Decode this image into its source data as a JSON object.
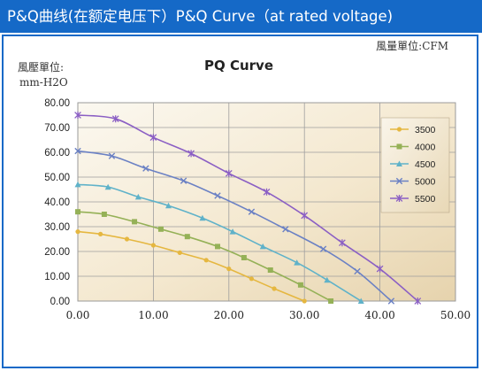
{
  "banner": {
    "title": "P&Q曲线(在额定电压下）P&Q Curve（at rated voltage)"
  },
  "chart_data": {
    "type": "line",
    "title": "PQ Curve",
    "ylabel_line1": "風壓單位:",
    "ylabel_line2": "mm-H2O",
    "xunit_label": "風量單位:CFM",
    "xlim": [
      0,
      50
    ],
    "ylim": [
      0,
      80
    ],
    "xticks": [
      "0.00",
      "10.00",
      "20.00",
      "30.00",
      "40.00",
      "50.00"
    ],
    "yticks": [
      "0.00",
      "10.00",
      "20.00",
      "30.00",
      "40.00",
      "50.00",
      "60.00",
      "70.00",
      "80.00"
    ],
    "grid": true,
    "legend_position": "right",
    "series": [
      {
        "name": "3500",
        "color": "#e5b740",
        "marker": "circle",
        "x": [
          0,
          3,
          6.5,
          10,
          13.5,
          17,
          20,
          23,
          26,
          30
        ],
        "y": [
          28,
          27,
          25,
          22.5,
          19.5,
          16.5,
          13,
          9,
          5,
          0
        ]
      },
      {
        "name": "4000",
        "color": "#95b157",
        "marker": "square",
        "x": [
          0,
          3.5,
          7.5,
          11,
          14.5,
          18.5,
          22,
          25.5,
          29.5,
          33.5
        ],
        "y": [
          36,
          35,
          32,
          29,
          26,
          22,
          17.5,
          12.5,
          6.5,
          0
        ]
      },
      {
        "name": "4500",
        "color": "#5fb2c9",
        "marker": "triangle",
        "x": [
          0,
          4,
          8,
          12,
          16.5,
          20.5,
          24.5,
          29,
          33,
          37.5
        ],
        "y": [
          47,
          46,
          42,
          38.5,
          33.5,
          28,
          22,
          15.5,
          8.5,
          0
        ]
      },
      {
        "name": "5000",
        "color": "#6b81c4",
        "marker": "x",
        "x": [
          0,
          4.5,
          9,
          14,
          18.5,
          23,
          27.5,
          32.5,
          37,
          41.5
        ],
        "y": [
          60.5,
          58.5,
          53.5,
          48.5,
          42.5,
          36,
          29,
          21,
          12,
          0
        ]
      },
      {
        "name": "5500",
        "color": "#8b5fc4",
        "marker": "star",
        "x": [
          0,
          5,
          10,
          15,
          20,
          25,
          30,
          35,
          40,
          45
        ],
        "y": [
          75,
          73.5,
          66,
          59.5,
          51.5,
          44,
          34.5,
          23.5,
          13,
          0
        ]
      }
    ]
  }
}
